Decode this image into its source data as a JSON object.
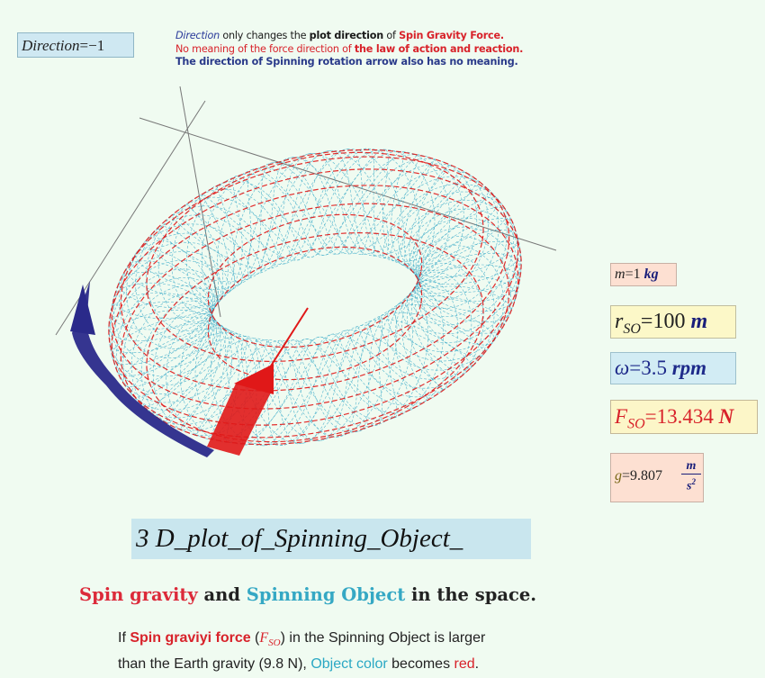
{
  "direction": {
    "label": "Direction",
    "value": "=−1"
  },
  "notes": {
    "line1_it": "Direction",
    "line1_a": " only changes the ",
    "line1_b": "plot direction",
    "line1_c": " of ",
    "line1_d": "Spin Gravity Force.",
    "line2_a": "No meaning of the force direction of ",
    "line2_b": "the law of action and reaction.",
    "line3": "The direction of Spinning rotation arrow also has no meaning."
  },
  "params": {
    "m": {
      "var": "m",
      "eq": "=1",
      "unit": "kg"
    },
    "r": {
      "var": "r",
      "sub": "SO",
      "eq": "=100",
      "unit": "m"
    },
    "w": {
      "var": "ω",
      "eq": "=3.5",
      "unit": "rpm"
    },
    "f": {
      "var": "F",
      "sub": "SO",
      "eq": "=13.434",
      "unit": "N"
    },
    "g": {
      "var": "g",
      "eq": "=9.807",
      "unit_num": "m",
      "unit_den": "s",
      "unit_exp": "2"
    }
  },
  "caption": "3 D_plot_of_Spinning_Object_",
  "subtitle": {
    "a": "Spin gravity",
    "b": " and ",
    "c": "Spinning Object",
    "d": " in the space."
  },
  "para": {
    "a": "If ",
    "b": "Spin graviyi force",
    "c": " (",
    "sym": "F",
    "sub": "SO",
    "d": ") in the Spinning Object is larger",
    "e": "than the Earth gravity (9.8 N), ",
    "f": "Object color",
    "g": " becomes ",
    "h": "red",
    "i": "."
  },
  "colors": {
    "background": "#f0fbf1",
    "mesh_cyan": "#3aaac8",
    "mesh_red": "#e01818",
    "arrow_blue": "#2a2a8a",
    "force_red": "#e01818"
  }
}
